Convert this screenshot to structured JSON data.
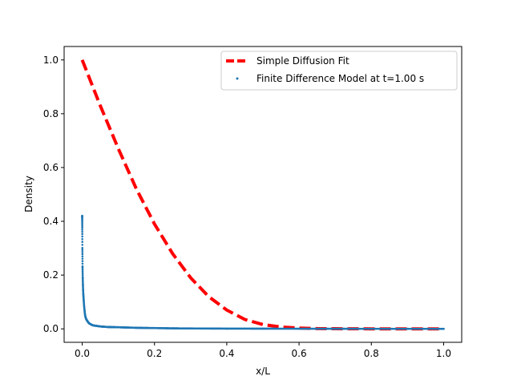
{
  "chart_data": {
    "type": "line",
    "title": "",
    "xlabel": "x/L",
    "ylabel": "Density",
    "xlim": [
      -0.05,
      1.05
    ],
    "ylim": [
      -0.05,
      1.05
    ],
    "x_ticks": [
      0.0,
      0.2,
      0.4,
      0.6,
      0.8,
      1.0
    ],
    "x_tick_labels": [
      "0.0",
      "0.2",
      "0.4",
      "0.6",
      "0.8",
      "1.0"
    ],
    "y_ticks": [
      0.0,
      0.2,
      0.4,
      0.6,
      0.8,
      1.0
    ],
    "y_tick_labels": [
      "0.0",
      "0.2",
      "0.4",
      "0.6",
      "0.8",
      "1.0"
    ],
    "grid": false,
    "legend_position": "upper right",
    "series": [
      {
        "name": "Simple Diffusion Fit",
        "kind": "line",
        "style": "dashed",
        "color": "#ff0000",
        "x": [
          0.0,
          0.05,
          0.1,
          0.15,
          0.2,
          0.25,
          0.3,
          0.35,
          0.4,
          0.45,
          0.5,
          0.55,
          0.6,
          0.65,
          0.7,
          0.75,
          0.8,
          0.85,
          0.9,
          0.95,
          1.0
        ],
        "y": [
          1.0,
          0.83,
          0.67,
          0.52,
          0.39,
          0.28,
          0.19,
          0.12,
          0.07,
          0.035,
          0.016,
          0.007,
          0.003,
          0.001,
          0.0005,
          0.0002,
          0.0001,
          0.0,
          0.0,
          0.0,
          0.0
        ]
      },
      {
        "name": "Finite Difference Model at t=1.00 s",
        "kind": "scatter",
        "color": "#1f77b4",
        "x": [
          0.0,
          0.0005,
          0.001,
          0.0015,
          0.002,
          0.0025,
          0.003,
          0.0035,
          0.004,
          0.005,
          0.006,
          0.007,
          0.008,
          0.009,
          0.01,
          0.012,
          0.014,
          0.016,
          0.018,
          0.02,
          0.025,
          0.03,
          0.04,
          0.05,
          0.07,
          0.1,
          0.15,
          0.2,
          0.25,
          0.3,
          0.4,
          0.5,
          0.6,
          0.7,
          0.8,
          0.9,
          1.0
        ],
        "y": [
          0.42,
          0.3,
          0.23,
          0.19,
          0.165,
          0.145,
          0.13,
          0.12,
          0.11,
          0.09,
          0.075,
          0.062,
          0.052,
          0.045,
          0.04,
          0.034,
          0.03,
          0.026,
          0.022,
          0.02,
          0.016,
          0.013,
          0.011,
          0.009,
          0.007,
          0.006,
          0.004,
          0.003,
          0.002,
          0.0015,
          0.001,
          0.0008,
          0.0006,
          0.0004,
          0.0003,
          0.0002,
          0.0001
        ]
      }
    ]
  }
}
